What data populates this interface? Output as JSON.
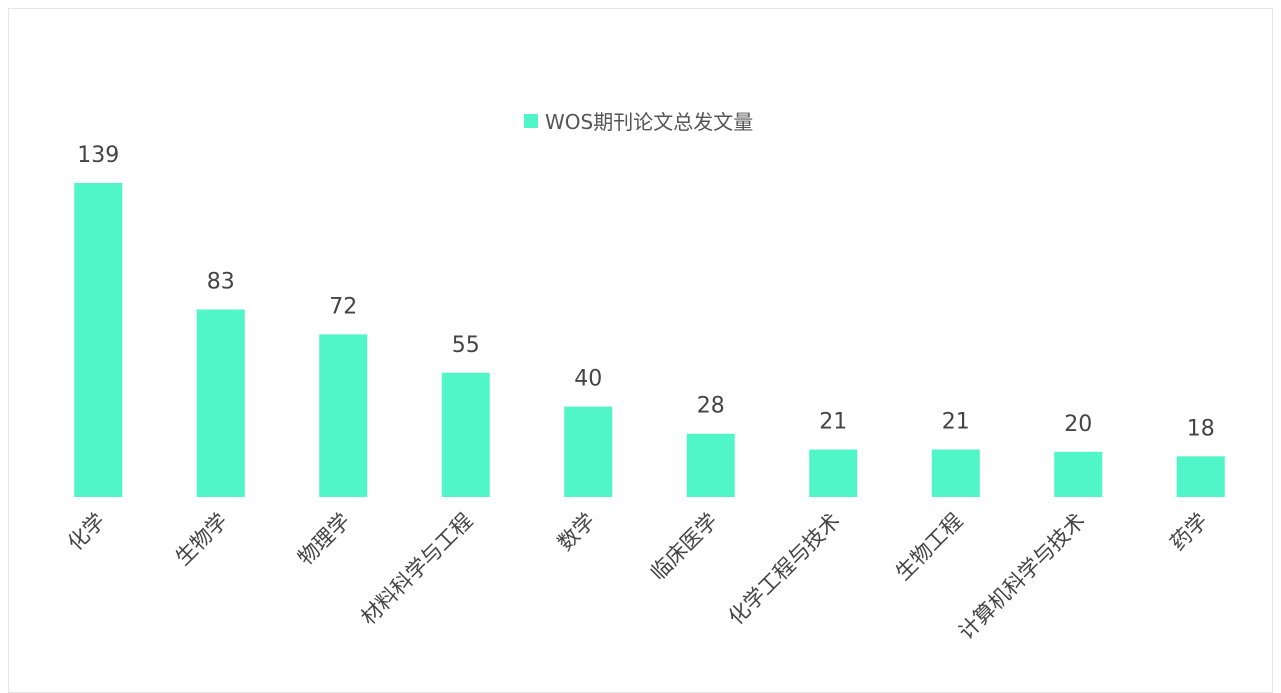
{
  "chart_data": {
    "type": "bar",
    "categories": [
      "化学",
      "生物学",
      "物理学",
      "材料科学与工程",
      "数学",
      "临床医学",
      "化学工程与技术",
      "生物工程",
      "计算机科学与技术",
      "药学"
    ],
    "series": [
      {
        "name": "WOS期刊论文总发文量",
        "color": "#50f5c8",
        "values": [
          139,
          83,
          72,
          55,
          40,
          28,
          21,
          21,
          20,
          18
        ]
      }
    ],
    "legend": "top"
  }
}
